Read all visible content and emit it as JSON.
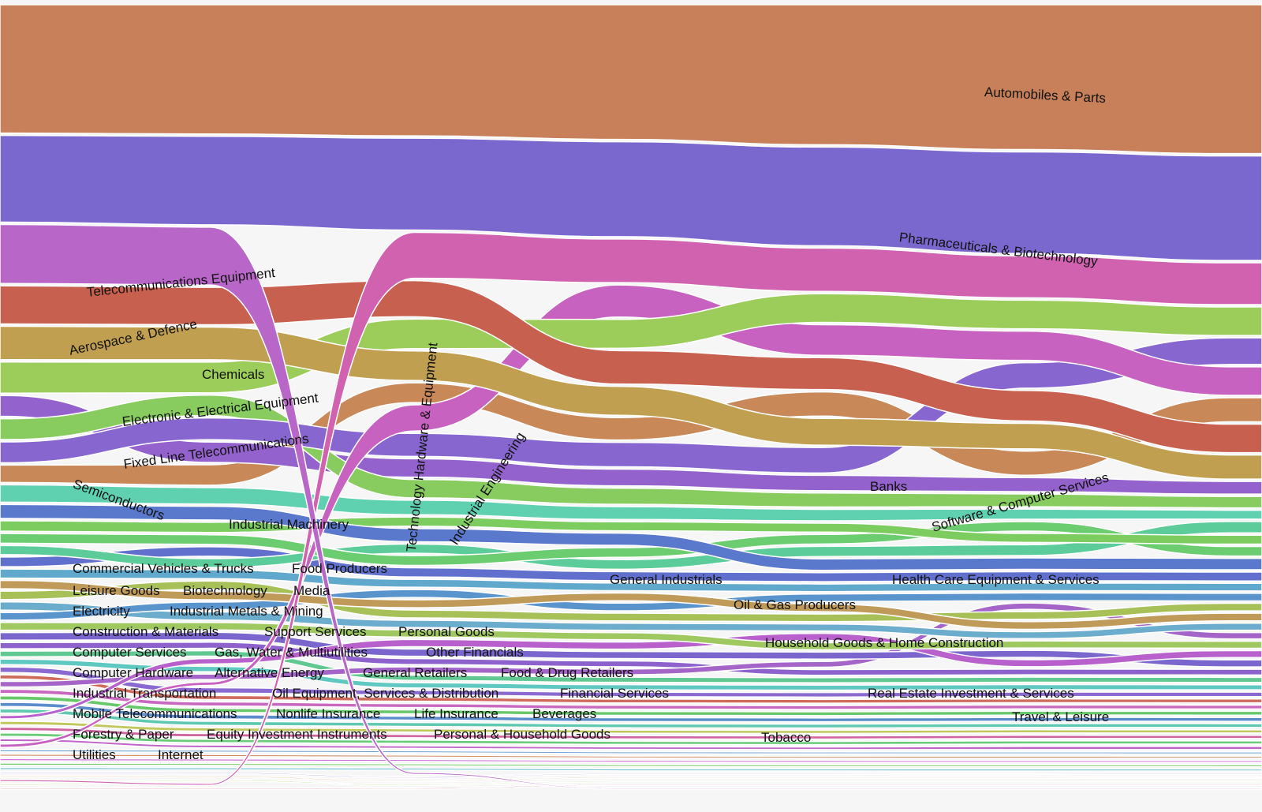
{
  "chart_data": {
    "type": "area",
    "subtype": "ranked streamgraph (bump chart with band thickness)",
    "grid": false,
    "legend": "none (labels inline)",
    "series": [
      {
        "name": "Automobiles & Parts",
        "color": "#c8805a",
        "values": [
          185,
          190,
          200,
          210,
          220,
          228,
          235
        ],
        "rank": [
          1,
          1,
          1,
          1,
          1,
          1,
          1
        ]
      },
      {
        "name": "Pharmaceuticals & Biotechnology",
        "color": "#7a68cf",
        "values": [
          125,
          130,
          140,
          148,
          155,
          160,
          165
        ],
        "rank": [
          2,
          2,
          2,
          2,
          2,
          2,
          2
        ]
      },
      {
        "name": "Telecommunications Equipment",
        "color": "#b866c8",
        "values": [
          85,
          85,
          3,
          2,
          2,
          2,
          2
        ],
        "rank": [
          3,
          3,
          46,
          50,
          50,
          50,
          50
        ]
      },
      {
        "name": "Technology Hardware & Equipment",
        "color": "#d062b0",
        "values": [
          3,
          3,
          70,
          68,
          68,
          66,
          66
        ],
        "rank": [
          48,
          48,
          3,
          3,
          3,
          3,
          3
        ]
      },
      {
        "name": "Aerospace & Defence",
        "color": "#c8604f",
        "values": [
          55,
          55,
          55,
          52,
          50,
          48,
          45
        ],
        "rank": [
          4,
          4,
          4,
          6,
          6,
          7,
          8
        ]
      },
      {
        "name": "Chemicals",
        "color": "#c0a050",
        "values": [
          48,
          48,
          45,
          45,
          42,
          40,
          38
        ],
        "rank": [
          5,
          5,
          6,
          7,
          8,
          8,
          9
        ]
      },
      {
        "name": "Electronic & Electrical Equipment",
        "color": "#9ccc5a",
        "values": [
          45,
          45,
          45,
          45,
          45,
          45,
          45
        ],
        "rank": [
          6,
          6,
          5,
          5,
          4,
          4,
          4
        ]
      },
      {
        "name": "Industrial Engineering",
        "color": "#c862c0",
        "values": [
          5,
          5,
          40,
          50,
          48,
          46,
          45
        ],
        "rank": [
          40,
          30,
          8,
          4,
          5,
          5,
          6
        ]
      },
      {
        "name": "Software & Computer Services",
        "color": "#8866d0",
        "values": [
          30,
          32,
          35,
          38,
          40,
          40,
          42
        ],
        "rank": [
          9,
          8,
          9,
          9,
          9,
          6,
          5
        ]
      },
      {
        "name": "Fixed Line Telecommunications",
        "color": "#88cc60",
        "values": [
          30,
          30,
          28,
          25,
          22,
          20,
          18
        ],
        "rank": [
          8,
          7,
          11,
          12,
          12,
          12,
          12
        ]
      },
      {
        "name": "Semiconductors",
        "color": "#9462cc",
        "values": [
          30,
          30,
          28,
          26,
          24,
          22,
          20
        ],
        "rank": [
          7,
          9,
          10,
          11,
          11,
          11,
          11
        ]
      },
      {
        "name": "Banks",
        "color": "#c88858",
        "values": [
          25,
          30,
          30,
          35,
          38,
          38,
          38
        ],
        "rank": [
          10,
          10,
          7,
          8,
          7,
          9,
          7
        ]
      },
      {
        "name": "Industrial Machinery",
        "color": "#5fd0b0",
        "values": [
          25,
          24,
          22,
          20,
          18,
          16,
          14
        ],
        "rank": [
          11,
          11,
          12,
          13,
          13,
          13,
          13
        ]
      },
      {
        "name": "Commercial Vehicles & Trucks",
        "color": "#5a78cc",
        "values": [
          20,
          20,
          20,
          19,
          18,
          18,
          18
        ],
        "rank": [
          13,
          13,
          14,
          15,
          17,
          17,
          17
        ]
      },
      {
        "name": "Food Producers",
        "color": "#7ccc60",
        "values": [
          15,
          15,
          14,
          14,
          14,
          14,
          14
        ],
        "rank": [
          14,
          14,
          13,
          14,
          14,
          15,
          15
        ]
      },
      {
        "name": "General Industrials",
        "color": "#6ccc70",
        "values": [
          14,
          14,
          15,
          15,
          15,
          15,
          15
        ],
        "rank": [
          15,
          15,
          16,
          16,
          15,
          14,
          16
        ]
      },
      {
        "name": "Health Care Equipment & Services",
        "color": "#5ccc9a",
        "values": [
          13,
          13,
          14,
          15,
          16,
          17,
          18
        ],
        "rank": [
          16,
          17,
          15,
          17,
          16,
          16,
          14
        ]
      },
      {
        "name": "Oil & Gas Producers",
        "color": "#6070cc",
        "values": [
          14,
          14,
          14,
          14,
          14,
          14,
          14
        ],
        "rank": [
          17,
          16,
          17,
          18,
          18,
          18,
          18
        ]
      },
      {
        "name": "Leisure Goods",
        "color": "#60a8cc",
        "values": [
          13,
          13,
          12,
          12,
          12,
          12,
          12
        ],
        "rank": [
          18,
          18,
          18,
          19,
          19,
          19,
          19
        ]
      },
      {
        "name": "Biotechnology",
        "color": "#c09a58",
        "values": [
          12,
          12,
          12,
          12,
          12,
          12,
          12
        ],
        "rank": [
          19,
          20,
          20,
          20,
          21,
          22,
          22
        ]
      },
      {
        "name": "Media",
        "color": "#5a94cc",
        "values": [
          11,
          11,
          12,
          12,
          12,
          12,
          12
        ],
        "rank": [
          22,
          21,
          19,
          21,
          20,
          20,
          20
        ]
      },
      {
        "name": "Electricity",
        "color": "#a8c058",
        "values": [
          12,
          12,
          12,
          12,
          12,
          12,
          12
        ],
        "rank": [
          20,
          19,
          21,
          22,
          22,
          21,
          21
        ]
      },
      {
        "name": "Industrial Metals & Mining",
        "color": "#6caccc",
        "values": [
          12,
          12,
          11,
          11,
          11,
          11,
          11
        ],
        "rank": [
          21,
          22,
          22,
          23,
          23,
          23,
          23
        ]
      },
      {
        "name": "Construction & Materials",
        "color": "#a0c860",
        "values": [
          11,
          11,
          11,
          11,
          11,
          11,
          11
        ],
        "rank": [
          23,
          23,
          23,
          24,
          25,
          24,
          24
        ]
      },
      {
        "name": "Support Services",
        "color": "#b860cc",
        "values": [
          5,
          8,
          11,
          11,
          11,
          11,
          11
        ],
        "rank": [
          35,
          27,
          24,
          25,
          24,
          26,
          25
        ]
      },
      {
        "name": "Personal Goods",
        "color": "#7a66cc",
        "values": [
          11,
          11,
          11,
          11,
          11,
          11,
          11
        ],
        "rank": [
          24,
          24,
          25,
          26,
          26,
          25,
          26
        ]
      },
      {
        "name": "Household Goods & Home Construction",
        "color": "#a464c8",
        "values": [
          8,
          8,
          9,
          9,
          9,
          10,
          10
        ],
        "rank": [
          30,
          29,
          27,
          28,
          27,
          20.5,
          23.5
        ]
      },
      {
        "name": "Computer Services",
        "color": "#8e62cc",
        "values": [
          9,
          9,
          9,
          9,
          9,
          9,
          9
        ],
        "rank": [
          25,
          25,
          26,
          27,
          28,
          27,
          27
        ]
      },
      {
        "name": "Gas, Water & Multiutilities",
        "color": "#60c890",
        "values": [
          8,
          8,
          8,
          8,
          8,
          8,
          8
        ],
        "rank": [
          26,
          26,
          28,
          29,
          29,
          28,
          28
        ]
      },
      {
        "name": "Other Financials",
        "color": "#5fc8c0",
        "values": [
          8,
          8,
          8,
          8,
          8,
          8,
          8
        ],
        "rank": [
          27,
          28,
          29,
          30,
          30,
          29,
          29
        ]
      },
      {
        "name": "Computer Hardware",
        "color": "#8a6ad0",
        "values": [
          8,
          8,
          7,
          7,
          7,
          7,
          7
        ],
        "rank": [
          28,
          30,
          30,
          31,
          31,
          30,
          30
        ]
      },
      {
        "name": "Alternative Energy",
        "color": "#d06a5a",
        "values": [
          6,
          6,
          6,
          6,
          6,
          6,
          6
        ],
        "rank": [
          29,
          31,
          31,
          32,
          32,
          31,
          31
        ]
      },
      {
        "name": "General Retailers",
        "color": "#c868c0",
        "values": [
          6,
          6,
          6,
          6,
          6,
          6,
          6
        ],
        "rank": [
          31,
          32,
          32,
          33,
          33,
          32,
          32
        ]
      },
      {
        "name": "Food & Drug Retailers",
        "color": "#66c868",
        "values": [
          6,
          6,
          6,
          6,
          6,
          6,
          6
        ],
        "rank": [
          32,
          33,
          33,
          34,
          34,
          33,
          33
        ]
      },
      {
        "name": "Industrial Transportation",
        "color": "#5a8ccc",
        "values": [
          6,
          6,
          6,
          6,
          6,
          6,
          6
        ],
        "rank": [
          33,
          34,
          34,
          35,
          35,
          34,
          34
        ]
      },
      {
        "name": "Oil Equipment, Services & Distribution",
        "color": "#5fc8b0",
        "values": [
          6,
          6,
          6,
          6,
          6,
          6,
          6
        ],
        "rank": [
          34,
          35,
          35,
          36,
          36,
          35,
          35
        ]
      },
      {
        "name": "Financial Services",
        "color": "#c0c85c",
        "values": [
          5,
          5,
          5,
          5,
          5,
          5,
          5
        ],
        "rank": [
          36,
          36,
          36,
          37,
          37,
          36,
          36
        ]
      },
      {
        "name": "Tobacco",
        "color": "#d064a0",
        "values": [
          5,
          5,
          5,
          5,
          5,
          5,
          5
        ],
        "rank": [
          37,
          37,
          37,
          38,
          38,
          37,
          37
        ]
      },
      {
        "name": "Travel & Leisure",
        "color": "#68cc78",
        "values": [
          5,
          5,
          5,
          5,
          5,
          5,
          5
        ],
        "rank": [
          38,
          38,
          38,
          39,
          39,
          38,
          38
        ]
      },
      {
        "name": "Real Estate Investment & Services",
        "color": "#c064c8",
        "values": [
          4,
          4,
          4,
          4,
          4,
          5,
          5
        ],
        "rank": [
          39,
          39,
          39,
          40,
          40,
          39,
          39
        ]
      },
      {
        "name": "Mobile Telecommunications",
        "color": "#6aa0d0",
        "values": [
          3,
          3,
          3,
          3,
          3,
          3,
          3
        ],
        "rank": [
          41,
          40,
          40,
          41,
          41,
          40,
          40
        ]
      },
      {
        "name": "Nonlife Insurance",
        "color": "#d08a60",
        "values": [
          3,
          3,
          3,
          3,
          3,
          3,
          3
        ],
        "rank": [
          42,
          41,
          41,
          42,
          42,
          41,
          41
        ]
      },
      {
        "name": "Life Insurance",
        "color": "#c864d0",
        "values": [
          3,
          3,
          3,
          3,
          3,
          3,
          3
        ],
        "rank": [
          43,
          42,
          42,
          43,
          43,
          42,
          42
        ]
      },
      {
        "name": "Beverages",
        "color": "#70c860",
        "values": [
          3,
          3,
          3,
          3,
          3,
          3,
          3
        ],
        "rank": [
          44,
          43,
          43,
          44,
          44,
          43,
          43
        ]
      },
      {
        "name": "Forestry & Paper",
        "color": "#60b8cc",
        "values": [
          3,
          3,
          3,
          3,
          3,
          3,
          3
        ],
        "rank": [
          45,
          44,
          44,
          45,
          45,
          44,
          44
        ]
      },
      {
        "name": "Equity Investment Instruments",
        "color": "#8c78d0",
        "values": [
          2,
          2,
          2,
          2,
          2,
          2,
          2
        ],
        "rank": [
          46,
          45,
          47,
          46,
          46,
          45,
          45
        ]
      },
      {
        "name": "Personal & Household Goods",
        "color": "#d0a060",
        "values": [
          2,
          2,
          2,
          2,
          2,
          2,
          2
        ],
        "rank": [
          47,
          46,
          48,
          47,
          47,
          46,
          46
        ]
      },
      {
        "name": "Utilities",
        "color": "#a8d060",
        "values": [
          2,
          2,
          2,
          2,
          2,
          2,
          2
        ],
        "rank": [
          49,
          47,
          49,
          48,
          48,
          47,
          47
        ]
      },
      {
        "name": "Internet",
        "color": "#d07890",
        "values": [
          2,
          2,
          2,
          2,
          2,
          2,
          2
        ],
        "rank": [
          50,
          49,
          50,
          49,
          49,
          48,
          48
        ]
      }
    ]
  }
}
